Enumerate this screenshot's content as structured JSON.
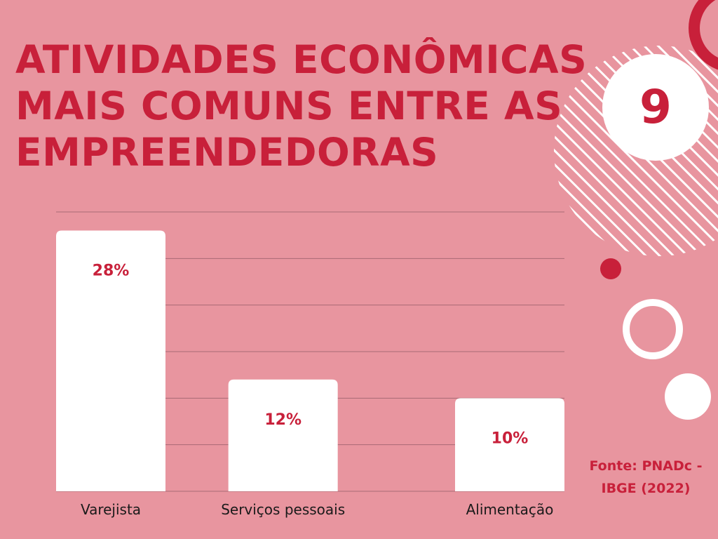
{
  "title_lines": [
    "ATIVIDADES ECONÔMICAS",
    "MAIS COMUNS ENTRE AS",
    "EMPREENDEDORAS"
  ],
  "badge_number": "9",
  "source_lines": [
    "Fonte: PNADc -",
    "IBGE (2022)"
  ],
  "colors": {
    "background": "#e8959f",
    "accent": "#c8203a",
    "bar": "#ffffff",
    "grid": "#a86a74",
    "label": "#1a1a1a"
  },
  "chart_data": {
    "type": "bar",
    "categories": [
      "Varejista",
      "Serviços pessoais",
      "Alimentação"
    ],
    "values": [
      28,
      12,
      10
    ],
    "value_labels": [
      "28%",
      "12%",
      "10%"
    ],
    "ylim": [
      0,
      30
    ],
    "grid": true
  }
}
